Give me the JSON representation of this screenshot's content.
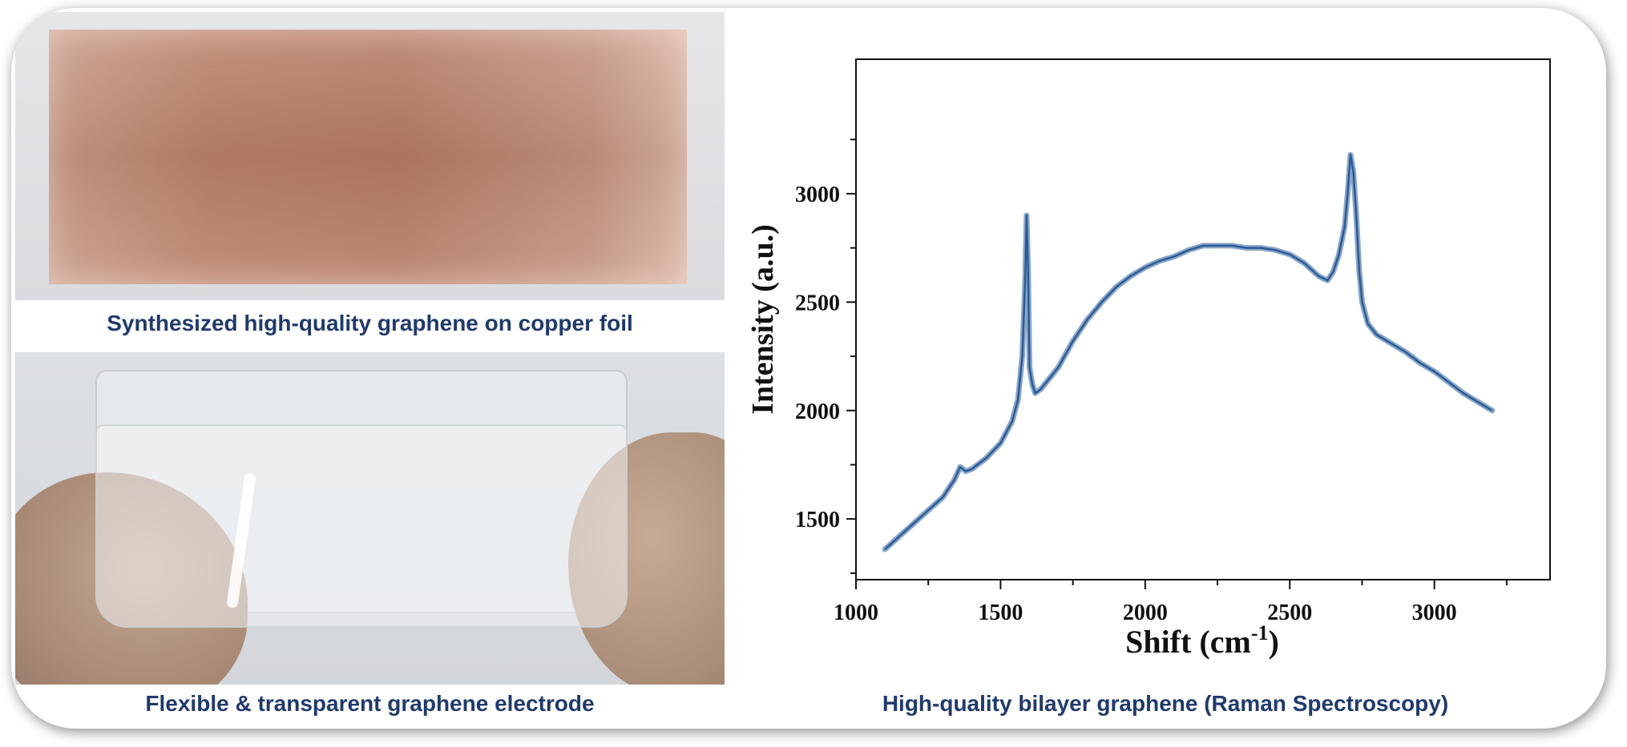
{
  "captions": {
    "copper": "Synthesized high-quality graphene on copper foil",
    "electrode": "Flexible & transparent graphene electrode",
    "raman": "High-quality bilayer graphene (Raman Spectroscopy)"
  },
  "colors": {
    "caption": "#1f3a6e",
    "series": "#2a5c9a"
  },
  "chart_data": {
    "type": "line",
    "title": "",
    "xlabel": "Shift (cm",
    "xlabel_sup": "-1",
    "xlabel_suffix": ")",
    "ylabel": "Intensity (a.u.)",
    "xlim": [
      1000,
      3400
    ],
    "ylim": [
      1220,
      3620
    ],
    "xticks": [
      1000,
      1500,
      2000,
      2500,
      3000
    ],
    "yticks": [
      1500,
      2000,
      2500,
      3000
    ],
    "grid": false,
    "legend": "none",
    "series": [
      {
        "x": [
          1100,
          1150,
          1200,
          1250,
          1300,
          1340,
          1360,
          1380,
          1400,
          1450,
          1500,
          1540,
          1560,
          1575,
          1585,
          1590,
          1595,
          1600,
          1610,
          1620,
          1640,
          1700,
          1750,
          1800,
          1850,
          1900,
          1950,
          2000,
          2050,
          2100,
          2150,
          2200,
          2250,
          2300,
          2350,
          2400,
          2450,
          2500,
          2550,
          2600,
          2630,
          2650,
          2670,
          2690,
          2700,
          2710,
          2720,
          2730,
          2740,
          2750,
          2770,
          2800,
          2850,
          2900,
          2950,
          3000,
          3050,
          3100,
          3150,
          3200
        ],
        "y": [
          1360,
          1420,
          1480,
          1540,
          1600,
          1680,
          1740,
          1720,
          1730,
          1780,
          1850,
          1950,
          2050,
          2250,
          2600,
          2900,
          2650,
          2200,
          2120,
          2080,
          2100,
          2200,
          2320,
          2420,
          2500,
          2570,
          2620,
          2660,
          2690,
          2710,
          2740,
          2760,
          2760,
          2760,
          2750,
          2750,
          2740,
          2720,
          2680,
          2620,
          2600,
          2640,
          2720,
          2850,
          3000,
          3180,
          3100,
          2900,
          2650,
          2500,
          2400,
          2350,
          2310,
          2270,
          2220,
          2180,
          2130,
          2080,
          2040,
          2000
        ]
      }
    ]
  }
}
